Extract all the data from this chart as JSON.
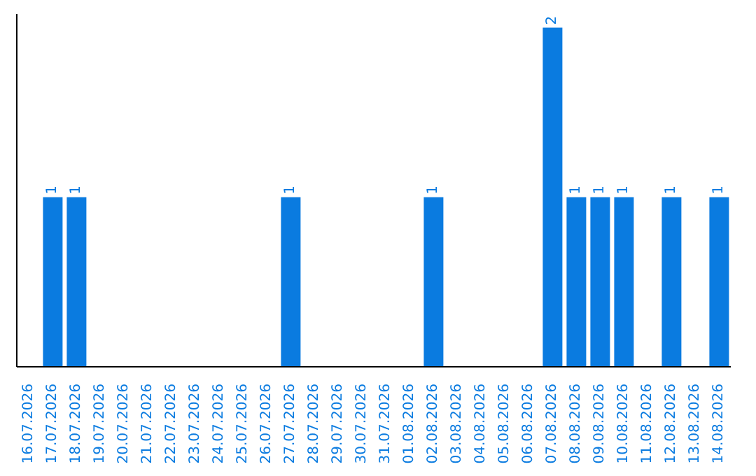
{
  "chart_data": {
    "type": "bar",
    "categories": [
      "16.07.2026",
      "17.07.2026",
      "18.07.2026",
      "19.07.2026",
      "20.07.2026",
      "21.07.2026",
      "22.07.2026",
      "23.07.2026",
      "24.07.2026",
      "25.07.2026",
      "26.07.2026",
      "27.07.2026",
      "28.07.2026",
      "29.07.2026",
      "30.07.2026",
      "31.07.2026",
      "01.08.2026",
      "02.08.2026",
      "03.08.2026",
      "04.08.2026",
      "05.08.2026",
      "06.08.2026",
      "07.08.2026",
      "08.08.2026",
      "09.08.2026",
      "10.08.2026",
      "11.08.2026",
      "12.08.2026",
      "13.08.2026",
      "14.08.2026"
    ],
    "values": [
      0,
      1,
      1,
      0,
      0,
      0,
      0,
      0,
      0,
      0,
      0,
      1,
      0,
      0,
      0,
      0,
      0,
      1,
      0,
      0,
      0,
      0,
      2,
      1,
      1,
      1,
      0,
      1,
      0,
      1
    ],
    "value_labels": [
      null,
      "1",
      "1",
      null,
      null,
      null,
      null,
      null,
      null,
      null,
      null,
      "1",
      null,
      null,
      null,
      null,
      null,
      "1",
      null,
      null,
      null,
      null,
      "2",
      "1",
      "1",
      "1",
      null,
      "1",
      null,
      "1"
    ],
    "color": "#0a7be0",
    "grid": false,
    "legend": false
  }
}
